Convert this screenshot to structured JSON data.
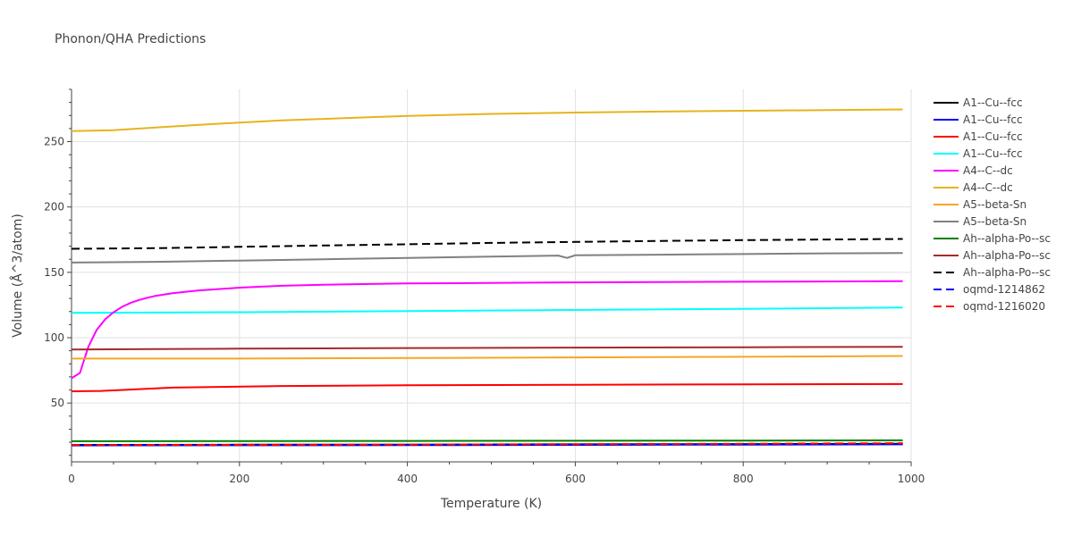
{
  "title": "Phonon/QHA Predictions",
  "chart_data": {
    "type": "line",
    "xlabel": "Temperature (K)",
    "ylabel": "Volume (Å^3/atom)",
    "xlim": [
      0,
      1000
    ],
    "ylim": [
      5,
      290
    ],
    "xticks": [
      0,
      200,
      400,
      600,
      800,
      1000
    ],
    "yticks": [
      50,
      100,
      150,
      200,
      250
    ],
    "grid": true,
    "legend_position": "right",
    "series": [
      {
        "name": "A1--Cu--fcc",
        "color": "#000000",
        "dash": "solid",
        "x": [
          0,
          200,
          400,
          600,
          800,
          990
        ],
        "y": [
          18.0,
          18.1,
          18.2,
          18.4,
          18.6,
          18.8
        ]
      },
      {
        "name": "A1--Cu--fcc",
        "color": "#0000ff",
        "dash": "solid",
        "x": [
          0,
          200,
          400,
          600,
          800,
          990
        ],
        "y": [
          17.6,
          17.7,
          17.8,
          18.0,
          18.2,
          18.4
        ]
      },
      {
        "name": "A1--Cu--fcc",
        "color": "#ff0000",
        "dash": "solid",
        "x": [
          0,
          35,
          120,
          250,
          400,
          600,
          800,
          990
        ],
        "y": [
          59,
          59.3,
          61.8,
          63,
          63.6,
          64,
          64.3,
          64.5
        ]
      },
      {
        "name": "A1--Cu--fcc",
        "color": "#00ffff",
        "dash": "solid",
        "x": [
          0,
          200,
          400,
          600,
          800,
          990
        ],
        "y": [
          119,
          119.5,
          120.3,
          121.2,
          122.1,
          123
        ]
      },
      {
        "name": "A4--C--dc",
        "color": "#ff00ff",
        "dash": "solid",
        "x": [
          0,
          10,
          20,
          30,
          40,
          50,
          60,
          70,
          80,
          90,
          100,
          120,
          150,
          200,
          250,
          300,
          400,
          600,
          800,
          990
        ],
        "y": [
          69,
          73,
          93,
          106,
          114,
          119.5,
          123.5,
          126.5,
          128.8,
          130.5,
          132,
          134,
          136,
          138.3,
          139.7,
          140.5,
          141.5,
          142.3,
          142.8,
          143.2
        ]
      },
      {
        "name": "A4--C--dc",
        "color": "#e6b41e",
        "dash": "solid",
        "x": [
          0,
          50,
          100,
          150,
          200,
          250,
          300,
          400,
          500,
          600,
          700,
          800,
          900,
          990
        ],
        "y": [
          258,
          258.7,
          260.8,
          262.7,
          264.6,
          266.2,
          267.4,
          269.6,
          271.2,
          272.2,
          273,
          273.6,
          274.1,
          274.6
        ]
      },
      {
        "name": "A5--beta-Sn",
        "color": "#f5a623",
        "dash": "solid",
        "x": [
          0,
          200,
          400,
          600,
          800,
          990
        ],
        "y": [
          84,
          84,
          84.4,
          84.9,
          85.4,
          86
        ]
      },
      {
        "name": "A5--beta-Sn",
        "color": "#808080",
        "dash": "solid",
        "x": [
          0,
          100,
          200,
          300,
          400,
          500,
          580,
          590,
          600,
          700,
          800,
          900,
          990
        ],
        "y": [
          157.5,
          158,
          159,
          160,
          161,
          162,
          162.8,
          161,
          163,
          163.5,
          164,
          164.5,
          164.8
        ]
      },
      {
        "name": "Ah--alpha-Po--sc",
        "color": "#008000",
        "dash": "solid",
        "x": [
          0,
          200,
          400,
          600,
          800,
          990
        ],
        "y": [
          20.8,
          20.9,
          21.0,
          21.1,
          21.3,
          21.5
        ]
      },
      {
        "name": "Ah--alpha-Po--sc",
        "color": "#a52a2a",
        "dash": "solid",
        "x": [
          0,
          100,
          200,
          300,
          400,
          600,
          800,
          990
        ],
        "y": [
          91,
          91.3,
          91.6,
          91.8,
          92.1,
          92.4,
          92.7,
          93
        ]
      },
      {
        "name": "Ah--alpha-Po--sc",
        "color": "#000000",
        "dash": "dash",
        "x": [
          0,
          100,
          200,
          300,
          400,
          500,
          600,
          700,
          800,
          900,
          990
        ],
        "y": [
          168,
          168.5,
          169.5,
          170.5,
          171.5,
          172.5,
          173.3,
          174,
          174.6,
          175.1,
          175.5
        ]
      },
      {
        "name": "oqmd-1214862",
        "color": "#0000ff",
        "dash": "dash",
        "x": [
          0,
          200,
          400,
          600,
          800,
          990
        ],
        "y": [
          17.8,
          17.9,
          18.0,
          18.2,
          18.4,
          18.7
        ]
      },
      {
        "name": "oqmd-1216020",
        "color": "#ff0000",
        "dash": "dash",
        "x": [
          0,
          200,
          400,
          600,
          800,
          990
        ],
        "y": [
          17.9,
          18.0,
          18.2,
          18.5,
          18.8,
          19.3
        ]
      }
    ]
  }
}
